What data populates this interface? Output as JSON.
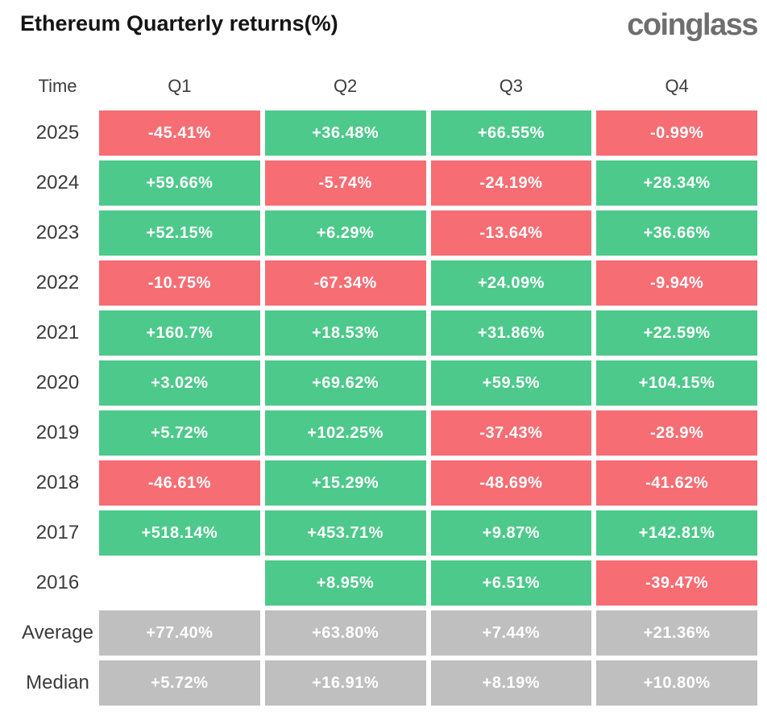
{
  "title": "Ethereum Quarterly returns(%)",
  "brand": "coinglass",
  "columns": [
    "Time",
    "Q1",
    "Q2",
    "Q3",
    "Q4"
  ],
  "colors": {
    "positive": "#4DC98B",
    "negative": "#F66D74",
    "aggregate": "#BFBFBF"
  },
  "chart_data": {
    "type": "table",
    "title": "Ethereum Quarterly returns(%)",
    "columns": [
      "Q1",
      "Q2",
      "Q3",
      "Q4"
    ],
    "rows": [
      {
        "label": "2025",
        "kind": "year",
        "values": [
          "-45.41%",
          "+36.48%",
          "+66.55%",
          "-0.99%"
        ]
      },
      {
        "label": "2024",
        "kind": "year",
        "values": [
          "+59.66%",
          "-5.74%",
          "-24.19%",
          "+28.34%"
        ]
      },
      {
        "label": "2023",
        "kind": "year",
        "values": [
          "+52.15%",
          "+6.29%",
          "-13.64%",
          "+36.66%"
        ]
      },
      {
        "label": "2022",
        "kind": "year",
        "values": [
          "-10.75%",
          "-67.34%",
          "+24.09%",
          "-9.94%"
        ]
      },
      {
        "label": "2021",
        "kind": "year",
        "values": [
          "+160.7%",
          "+18.53%",
          "+31.86%",
          "+22.59%"
        ]
      },
      {
        "label": "2020",
        "kind": "year",
        "values": [
          "+3.02%",
          "+69.62%",
          "+59.5%",
          "+104.15%"
        ]
      },
      {
        "label": "2019",
        "kind": "year",
        "values": [
          "+5.72%",
          "+102.25%",
          "-37.43%",
          "-28.9%"
        ]
      },
      {
        "label": "2018",
        "kind": "year",
        "values": [
          "-46.61%",
          "+15.29%",
          "-48.69%",
          "-41.62%"
        ]
      },
      {
        "label": "2017",
        "kind": "year",
        "values": [
          "+518.14%",
          "+453.71%",
          "+9.87%",
          "+142.81%"
        ]
      },
      {
        "label": "2016",
        "kind": "year",
        "values": [
          null,
          "+8.95%",
          "+6.51%",
          "-39.47%"
        ]
      },
      {
        "label": "Average",
        "kind": "aggregate",
        "values": [
          "+77.40%",
          "+63.80%",
          "+7.44%",
          "+21.36%"
        ]
      },
      {
        "label": "Median",
        "kind": "aggregate",
        "values": [
          "+5.72%",
          "+16.91%",
          "+8.19%",
          "+10.80%"
        ]
      }
    ]
  }
}
